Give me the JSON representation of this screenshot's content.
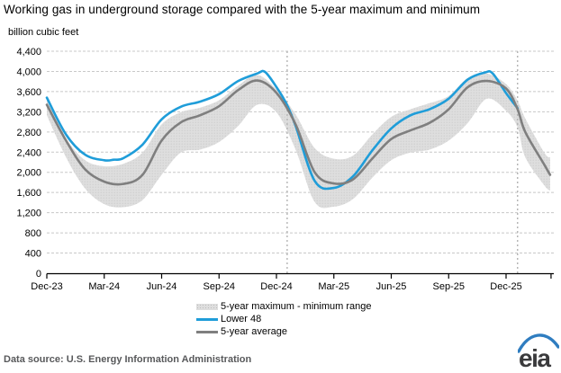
{
  "chart_data": {
    "type": "line",
    "title": "Working gas in underground storage compared with the 5-year maximum and minimum",
    "unit_label": "billion cubic feet",
    "ylim": [
      0,
      4400
    ],
    "ytick_step": 400,
    "grid": "horizontal-dashed",
    "legend_position": "bottom",
    "x_index_unit": "months, 0 = Dec-2023 (fractional = within month)",
    "xticks": [
      {
        "i": 0,
        "label": "Dec-23"
      },
      {
        "i": 3,
        "label": "Mar-24"
      },
      {
        "i": 6,
        "label": "Jun-24"
      },
      {
        "i": 9,
        "label": "Sep-24"
      },
      {
        "i": 12,
        "label": "Dec-24"
      },
      {
        "i": 15,
        "label": "Mar-25"
      },
      {
        "i": 18,
        "label": "Jun-25"
      },
      {
        "i": 21,
        "label": "Sep-25"
      },
      {
        "i": 24,
        "label": "Dec-25"
      }
    ],
    "end_tick_i": 26.35,
    "vlines_i": [
      12.56,
      24.6
    ],
    "colors": {
      "lower48": "#1f9dd9",
      "five_year_average": "#7f7f7f",
      "band_fill": "#dedede",
      "band_dots": "#c9c9c9",
      "gridline": "#c8c8c8",
      "dashed_vline": "#b3b3b3",
      "axis": "#000000"
    },
    "series": [
      {
        "name": "5-year maximum - minimum range",
        "type": "band",
        "color": "#dedede",
        "dot_color": "#c9c9c9",
        "upper": [
          [
            0,
            3450
          ],
          [
            1,
            2680
          ],
          [
            2,
            2240
          ],
          [
            3,
            2120
          ],
          [
            4,
            2170
          ],
          [
            5,
            2390
          ],
          [
            6,
            2950
          ],
          [
            7,
            3190
          ],
          [
            8,
            3280
          ],
          [
            9,
            3430
          ],
          [
            10,
            3720
          ],
          [
            11,
            3930
          ],
          [
            12,
            3640
          ],
          [
            13,
            3150
          ],
          [
            14,
            2480
          ],
          [
            15,
            2270
          ],
          [
            16,
            2330
          ],
          [
            17,
            2745
          ],
          [
            18,
            3100
          ],
          [
            19,
            3250
          ],
          [
            20,
            3370
          ],
          [
            21,
            3515
          ],
          [
            22,
            3870
          ],
          [
            23,
            3960
          ],
          [
            24,
            3750
          ],
          [
            24.6,
            3420
          ],
          [
            25,
            3070
          ],
          [
            26,
            2390
          ],
          [
            26.3,
            2290
          ]
        ],
        "lower": [
          [
            0,
            3130
          ],
          [
            1,
            2300
          ],
          [
            2,
            1680
          ],
          [
            3,
            1370
          ],
          [
            4,
            1310
          ],
          [
            5,
            1450
          ],
          [
            6,
            1950
          ],
          [
            7,
            2390
          ],
          [
            8,
            2450
          ],
          [
            9,
            2600
          ],
          [
            10,
            2920
          ],
          [
            11,
            3340
          ],
          [
            12,
            3190
          ],
          [
            13,
            2450
          ],
          [
            14,
            1410
          ],
          [
            15,
            1320
          ],
          [
            16,
            1470
          ],
          [
            17,
            1890
          ],
          [
            18,
            2240
          ],
          [
            19,
            2390
          ],
          [
            20,
            2450
          ],
          [
            21,
            2630
          ],
          [
            22,
            2980
          ],
          [
            23,
            3460
          ],
          [
            24,
            3220
          ],
          [
            24.6,
            2890
          ],
          [
            25,
            2300
          ],
          [
            26,
            1740
          ],
          [
            26.3,
            1640
          ]
        ]
      },
      {
        "name": "Lower 48",
        "type": "line",
        "color": "#1f9dd9",
        "points": [
          [
            0,
            3480
          ],
          [
            1,
            2750
          ],
          [
            2,
            2350
          ],
          [
            3,
            2240
          ],
          [
            3.5,
            2250
          ],
          [
            4,
            2280
          ],
          [
            5,
            2550
          ],
          [
            6,
            3050
          ],
          [
            7,
            3300
          ],
          [
            8,
            3400
          ],
          [
            9,
            3550
          ],
          [
            10,
            3810
          ],
          [
            11,
            3960
          ],
          [
            11.4,
            3990
          ],
          [
            12,
            3690
          ],
          [
            12.56,
            3330
          ],
          [
            13,
            2920
          ],
          [
            14,
            1830
          ],
          [
            15,
            1690
          ],
          [
            16,
            1920
          ],
          [
            17,
            2430
          ],
          [
            18,
            2870
          ],
          [
            19,
            3130
          ],
          [
            20,
            3250
          ],
          [
            21,
            3460
          ],
          [
            22,
            3840
          ],
          [
            22.9,
            3980
          ],
          [
            23.3,
            3960
          ],
          [
            24,
            3570
          ],
          [
            24.6,
            3270
          ]
        ]
      },
      {
        "name": "5-year average",
        "type": "line",
        "color": "#7f7f7f",
        "points": [
          [
            0,
            3340
          ],
          [
            1,
            2630
          ],
          [
            2,
            2060
          ],
          [
            3,
            1815
          ],
          [
            4,
            1770
          ],
          [
            5,
            1950
          ],
          [
            6,
            2630
          ],
          [
            7,
            2990
          ],
          [
            8,
            3130
          ],
          [
            9,
            3310
          ],
          [
            10,
            3630
          ],
          [
            11,
            3820
          ],
          [
            12,
            3575
          ],
          [
            13,
            2950
          ],
          [
            14,
            2000
          ],
          [
            15,
            1780
          ],
          [
            16,
            1860
          ],
          [
            17,
            2270
          ],
          [
            18,
            2660
          ],
          [
            19,
            2830
          ],
          [
            20,
            2980
          ],
          [
            21,
            3250
          ],
          [
            22,
            3690
          ],
          [
            23,
            3810
          ],
          [
            24,
            3660
          ],
          [
            24.6,
            3250
          ],
          [
            25,
            2800
          ],
          [
            26,
            2150
          ],
          [
            26.3,
            1950
          ]
        ]
      }
    ]
  },
  "footer": {
    "data_source": "Data source:  U.S. Energy Information Administration",
    "logo_text": "eia"
  }
}
